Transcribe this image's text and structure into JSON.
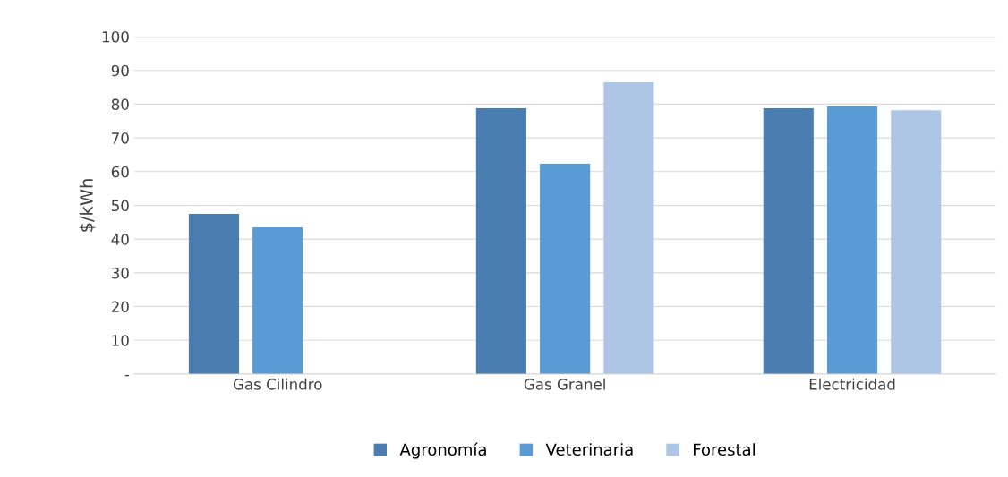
{
  "chart_data": {
    "type": "bar",
    "ylabel": "$/kWh",
    "categories": [
      "Gas Cilindro",
      "Gas Granel",
      "Electricidad"
    ],
    "series": [
      {
        "name": "Agronomía",
        "color": "#4a7eb0",
        "values": [
          47.5,
          78.8,
          78.8
        ]
      },
      {
        "name": "Veterinaria",
        "color": "#5b9bd5",
        "values": [
          43.5,
          62.3,
          79.3
        ]
      },
      {
        "name": "Forestal",
        "color": "#adc6e5",
        "values": [
          null,
          86.5,
          78.2
        ]
      }
    ],
    "ylim": [
      0,
      100
    ],
    "yticks": [
      {
        "value": 0,
        "label": "-"
      },
      10,
      20,
      30,
      40,
      50,
      60,
      70,
      80,
      90,
      100
    ],
    "grid": "y",
    "legend": "bottom"
  }
}
